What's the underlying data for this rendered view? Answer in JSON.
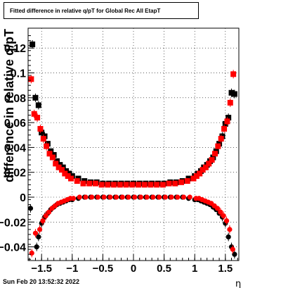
{
  "page": {
    "title": "Fitted difference in relative q/pT for Global Rec All EtapT",
    "timestamp": "Sun Feb 20 13:52:32 2022"
  },
  "colors": {
    "series_black": "#000000",
    "series_red": "#ff0000",
    "frame": "#000000",
    "grid": "#000000"
  },
  "chart_data": {
    "type": "scatter",
    "title": "Fitted difference in relative q/pT for Global Rec All EtapT",
    "xlabel": "η",
    "ylabel": "difference in relative q/pT",
    "xlim": [
      -1.72,
      1.72
    ],
    "ylim": [
      -0.051,
      0.136
    ],
    "grid": true,
    "x_ticks": [
      -1.5,
      -1,
      -0.5,
      0,
      0.5,
      1,
      1.5
    ],
    "x_tick_labels": [
      "−1.5",
      "−1",
      "−0.5",
      "0",
      "0.5",
      "1",
      "1.5"
    ],
    "y_ticks": [
      -0.04,
      -0.02,
      0,
      0.02,
      0.04,
      0.06,
      0.08,
      0.1,
      0.12
    ],
    "y_tick_labels": [
      "−0.04",
      "−0.02",
      "0",
      "0.02",
      "0.04",
      "0.06",
      "0.08",
      "0.1",
      "0.12"
    ],
    "series": [
      {
        "marker": "square",
        "color": "#000000",
        "x": [
          -1.65,
          -1.6,
          -1.55,
          -1.5,
          -1.45,
          -1.4,
          -1.35,
          -1.3,
          -1.25,
          -1.2,
          -1.15,
          -1.1,
          -1.05,
          -1.0,
          -0.9,
          -0.8,
          -0.7,
          -0.6,
          -0.5,
          -0.4,
          -0.3,
          -0.2,
          -0.1,
          0.0,
          0.1,
          0.2,
          0.3,
          0.4,
          0.5,
          0.6,
          0.7,
          0.8,
          0.9,
          1.0,
          1.05,
          1.1,
          1.15,
          1.2,
          1.25,
          1.3,
          1.35,
          1.4,
          1.45,
          1.5,
          1.55,
          1.6,
          1.65
        ],
        "y": [
          0.123,
          0.08,
          0.074,
          0.052,
          0.049,
          0.043,
          0.037,
          0.034,
          0.029,
          0.026,
          0.024,
          0.021,
          0.019,
          0.017,
          0.015,
          0.013,
          0.012,
          0.012,
          0.011,
          0.011,
          0.011,
          0.011,
          0.011,
          0.011,
          0.011,
          0.011,
          0.011,
          0.011,
          0.011,
          0.012,
          0.012,
          0.013,
          0.015,
          0.017,
          0.019,
          0.021,
          0.024,
          0.026,
          0.029,
          0.032,
          0.037,
          0.043,
          0.049,
          0.059,
          0.064,
          0.084,
          0.083
        ]
      },
      {
        "marker": "square",
        "color": "#ff0000",
        "x": [
          -1.67,
          -1.62,
          -1.57,
          -1.52,
          -1.47,
          -1.42,
          -1.37,
          -1.32,
          -1.27,
          -1.22,
          -1.17,
          -1.12,
          -1.07,
          -1.02,
          -0.92,
          -0.82,
          -0.72,
          -0.62,
          -0.52,
          -0.42,
          -0.32,
          -0.22,
          -0.12,
          -0.02,
          0.08,
          0.18,
          0.28,
          0.38,
          0.48,
          0.58,
          0.68,
          0.78,
          0.88,
          0.98,
          1.03,
          1.08,
          1.13,
          1.18,
          1.23,
          1.28,
          1.33,
          1.38,
          1.43,
          1.48,
          1.53,
          1.58,
          1.63
        ],
        "y": [
          0.095,
          0.067,
          0.064,
          0.055,
          0.047,
          0.041,
          0.035,
          0.032,
          0.027,
          0.024,
          0.022,
          0.019,
          0.017,
          0.015,
          0.013,
          0.011,
          0.011,
          0.011,
          0.01,
          0.01,
          0.01,
          0.01,
          0.01,
          0.01,
          0.01,
          0.01,
          0.01,
          0.01,
          0.01,
          0.011,
          0.011,
          0.012,
          0.013,
          0.015,
          0.017,
          0.019,
          0.022,
          0.024,
          0.027,
          0.03,
          0.035,
          0.041,
          0.047,
          0.055,
          0.061,
          0.076,
          0.099
        ]
      },
      {
        "marker": "circle",
        "color": "#000000",
        "x": [
          -1.68,
          -1.58,
          -1.55,
          -1.5,
          -1.45,
          -1.4,
          -1.35,
          -1.3,
          -1.25,
          -1.2,
          -1.15,
          -1.1,
          -1.05,
          -1.0,
          -0.9,
          -0.8,
          -0.7,
          -0.6,
          -0.5,
          -0.4,
          -0.3,
          -0.2,
          -0.1,
          0.0,
          0.1,
          0.2,
          0.3,
          0.4,
          0.5,
          0.6,
          0.7,
          0.8,
          0.9,
          1.0,
          1.05,
          1.1,
          1.15,
          1.2,
          1.25,
          1.3,
          1.35,
          1.4,
          1.45,
          1.5,
          1.55,
          1.6,
          1.65
        ],
        "y": [
          -0.009,
          -0.04,
          -0.032,
          -0.021,
          -0.016,
          -0.013,
          -0.01,
          -0.008,
          -0.006,
          -0.005,
          -0.004,
          -0.003,
          -0.002,
          -0.002,
          -0.001,
          0.0,
          0.0,
          0.0,
          0.0,
          0.0,
          0.0,
          0.0,
          0.0,
          0.0,
          0.0,
          0.0,
          0.0,
          0.0,
          0.0,
          0.0,
          0.0,
          0.0,
          -0.001,
          -0.002,
          -0.002,
          -0.003,
          -0.004,
          -0.005,
          -0.006,
          -0.008,
          -0.01,
          -0.013,
          -0.016,
          -0.021,
          -0.032,
          -0.04,
          -0.046
        ]
      },
      {
        "marker": "circle",
        "color": "#ff0000",
        "x": [
          -1.66,
          -1.6,
          -1.53,
          -1.48,
          -1.43,
          -1.38,
          -1.33,
          -1.28,
          -1.23,
          -1.18,
          -1.13,
          -1.08,
          -1.03,
          -0.98,
          -0.88,
          -0.78,
          -0.68,
          -0.58,
          -0.48,
          -0.38,
          -0.28,
          -0.18,
          -0.08,
          0.02,
          0.12,
          0.22,
          0.32,
          0.42,
          0.52,
          0.62,
          0.72,
          0.82,
          0.92,
          1.02,
          1.07,
          1.12,
          1.17,
          1.22,
          1.27,
          1.32,
          1.37,
          1.42,
          1.47,
          1.52,
          1.57,
          1.62
        ],
        "y": [
          -0.045,
          -0.029,
          -0.026,
          -0.019,
          -0.015,
          -0.012,
          -0.009,
          -0.007,
          -0.005,
          -0.004,
          -0.003,
          -0.002,
          -0.001,
          -0.001,
          0.0,
          0.0,
          0.0,
          0.0,
          0.0,
          0.0,
          0.0,
          0.0,
          0.0,
          0.0,
          0.0,
          0.0,
          0.0,
          0.0,
          0.0,
          0.0,
          0.0,
          0.0,
          0.0,
          -0.001,
          -0.001,
          -0.002,
          -0.003,
          -0.004,
          -0.005,
          -0.007,
          -0.009,
          -0.012,
          -0.015,
          -0.019,
          -0.026,
          -0.042
        ]
      }
    ]
  }
}
